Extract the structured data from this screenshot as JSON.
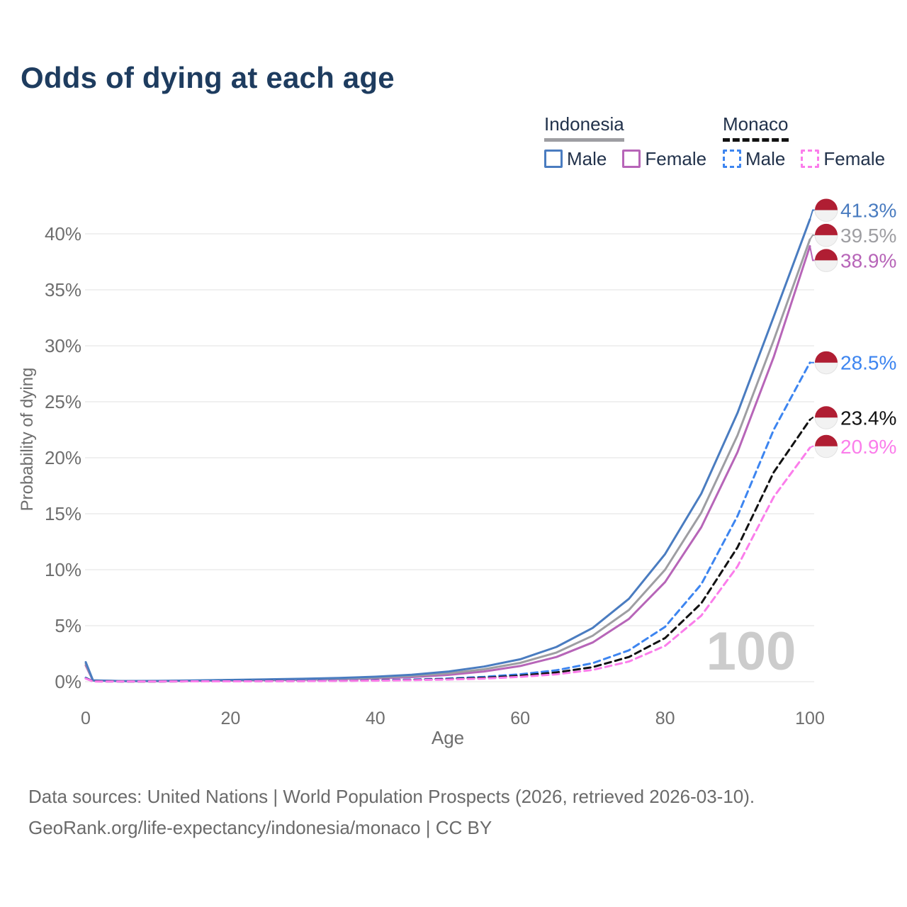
{
  "title": "Odds of dying at each age",
  "legend": {
    "groups": [
      {
        "name": "Indonesia",
        "line_style": "solid",
        "line_color": "#9e9ea2",
        "items": [
          {
            "label": "Male",
            "color": "#4a7cc0",
            "style": "solid"
          },
          {
            "label": "Female",
            "color": "#b765b8",
            "style": "solid"
          }
        ]
      },
      {
        "name": "Monaco",
        "line_style": "dashed",
        "line_color": "#121212",
        "items": [
          {
            "label": "Male",
            "color": "#3d85f0",
            "style": "dashed"
          },
          {
            "label": "Female",
            "color": "#fb7deb",
            "style": "dashed"
          }
        ]
      }
    ]
  },
  "chart_data": {
    "type": "line",
    "title": "Odds of dying at each age",
    "xlabel": "Age",
    "ylabel": "Probability of dying",
    "xlim": [
      0,
      100
    ],
    "ylim": [
      0,
      43
    ],
    "grid": "horizontal-only",
    "legend_position": "top-right",
    "watermark": "100",
    "x_ticks": [
      {
        "value": 0,
        "label": "0"
      },
      {
        "value": 20,
        "label": "20"
      },
      {
        "value": 40,
        "label": "40"
      },
      {
        "value": 60,
        "label": "60"
      },
      {
        "value": 80,
        "label": "80"
      },
      {
        "value": 100,
        "label": "100"
      }
    ],
    "y_ticks": [
      {
        "value": 0,
        "label": "0%"
      },
      {
        "value": 5,
        "label": "5%"
      },
      {
        "value": 10,
        "label": "10%"
      },
      {
        "value": 15,
        "label": "15%"
      },
      {
        "value": 20,
        "label": "20%"
      },
      {
        "value": 25,
        "label": "25%"
      },
      {
        "value": 30,
        "label": "30%"
      },
      {
        "value": 35,
        "label": "35%"
      },
      {
        "value": 40,
        "label": "40%"
      }
    ],
    "colors": {
      "grid": "#ececec",
      "axis_text": "#6e6e6e",
      "watermark": "#cccccc",
      "flag_red": "#b01e33",
      "flag_white": "#f2f2f2",
      "flag_rim": "#e2e2e2"
    },
    "series": [
      {
        "name": "Indonesia Male",
        "country": "Indonesia",
        "sex": "Male",
        "color": "#4a7cc0",
        "dash": "solid",
        "end_label": "41.3%",
        "flag": "indonesia",
        "label_offset": -13,
        "points": [
          [
            0,
            1.75
          ],
          [
            1,
            0.12
          ],
          [
            5,
            0.06
          ],
          [
            10,
            0.07
          ],
          [
            15,
            0.11
          ],
          [
            20,
            0.16
          ],
          [
            25,
            0.21
          ],
          [
            30,
            0.26
          ],
          [
            35,
            0.33
          ],
          [
            40,
            0.44
          ],
          [
            45,
            0.62
          ],
          [
            50,
            0.9
          ],
          [
            55,
            1.35
          ],
          [
            60,
            2.0
          ],
          [
            65,
            3.1
          ],
          [
            70,
            4.8
          ],
          [
            75,
            7.4
          ],
          [
            80,
            11.4
          ],
          [
            85,
            16.8
          ],
          [
            90,
            24.0
          ],
          [
            95,
            32.6
          ],
          [
            100,
            41.3
          ]
        ]
      },
      {
        "name": "Indonesia",
        "country": "Indonesia",
        "sex": "Both",
        "color": "#9e9ea2",
        "dash": "solid",
        "end_label": "39.5%",
        "flag": "indonesia",
        "label_offset": -6,
        "points": [
          [
            0,
            1.6
          ],
          [
            1,
            0.11
          ],
          [
            5,
            0.05
          ],
          [
            10,
            0.06
          ],
          [
            15,
            0.09
          ],
          [
            20,
            0.13
          ],
          [
            25,
            0.17
          ],
          [
            30,
            0.21
          ],
          [
            35,
            0.27
          ],
          [
            40,
            0.36
          ],
          [
            45,
            0.51
          ],
          [
            50,
            0.74
          ],
          [
            55,
            1.11
          ],
          [
            60,
            1.68
          ],
          [
            65,
            2.6
          ],
          [
            70,
            4.1
          ],
          [
            75,
            6.4
          ],
          [
            80,
            10.0
          ],
          [
            85,
            15.1
          ],
          [
            90,
            22.0
          ],
          [
            95,
            30.5
          ],
          [
            100,
            39.5
          ]
        ]
      },
      {
        "name": "Indonesia Female",
        "country": "Indonesia",
        "sex": "Female",
        "color": "#b765b8",
        "dash": "solid",
        "end_label": "38.9%",
        "flag": "indonesia",
        "label_offset": 20,
        "points": [
          [
            0,
            1.45
          ],
          [
            1,
            0.1
          ],
          [
            5,
            0.05
          ],
          [
            10,
            0.05
          ],
          [
            15,
            0.07
          ],
          [
            20,
            0.1
          ],
          [
            25,
            0.13
          ],
          [
            30,
            0.17
          ],
          [
            35,
            0.22
          ],
          [
            40,
            0.29
          ],
          [
            45,
            0.41
          ],
          [
            50,
            0.6
          ],
          [
            55,
            0.91
          ],
          [
            60,
            1.4
          ],
          [
            65,
            2.2
          ],
          [
            70,
            3.5
          ],
          [
            75,
            5.6
          ],
          [
            80,
            8.9
          ],
          [
            85,
            13.8
          ],
          [
            90,
            20.5
          ],
          [
            95,
            29.0
          ],
          [
            100,
            38.9
          ]
        ]
      },
      {
        "name": "Monaco Male",
        "country": "Monaco",
        "sex": "Male",
        "color": "#3d85f0",
        "dash": "dashed",
        "end_label": "28.5%",
        "flag": "monaco",
        "label_offset": 0,
        "points": [
          [
            0,
            0.35
          ],
          [
            1,
            0.03
          ],
          [
            5,
            0.02
          ],
          [
            10,
            0.02
          ],
          [
            15,
            0.04
          ],
          [
            20,
            0.05
          ],
          [
            25,
            0.06
          ],
          [
            30,
            0.08
          ],
          [
            35,
            0.1
          ],
          [
            40,
            0.13
          ],
          [
            45,
            0.19
          ],
          [
            50,
            0.28
          ],
          [
            55,
            0.43
          ],
          [
            60,
            0.66
          ],
          [
            65,
            1.02
          ],
          [
            70,
            1.65
          ],
          [
            75,
            2.8
          ],
          [
            80,
            4.9
          ],
          [
            85,
            8.7
          ],
          [
            90,
            14.8
          ],
          [
            95,
            22.5
          ],
          [
            100,
            28.5
          ]
        ]
      },
      {
        "name": "Monaco",
        "country": "Monaco",
        "sex": "Both",
        "color": "#121212",
        "dash": "dashed",
        "end_label": "23.4%",
        "flag": "monaco",
        "label_offset": -3,
        "points": [
          [
            0,
            0.3
          ],
          [
            1,
            0.03
          ],
          [
            5,
            0.02
          ],
          [
            10,
            0.02
          ],
          [
            15,
            0.03
          ],
          [
            20,
            0.04
          ],
          [
            25,
            0.05
          ],
          [
            30,
            0.06
          ],
          [
            35,
            0.08
          ],
          [
            40,
            0.11
          ],
          [
            45,
            0.15
          ],
          [
            50,
            0.23
          ],
          [
            55,
            0.35
          ],
          [
            60,
            0.53
          ],
          [
            65,
            0.82
          ],
          [
            70,
            1.3
          ],
          [
            75,
            2.2
          ],
          [
            80,
            3.9
          ],
          [
            85,
            7.0
          ],
          [
            90,
            12.0
          ],
          [
            95,
            18.7
          ],
          [
            100,
            23.4
          ]
        ]
      },
      {
        "name": "Monaco Female",
        "country": "Monaco",
        "sex": "Female",
        "color": "#fb7deb",
        "dash": "dashed",
        "end_label": "20.9%",
        "flag": "monaco",
        "label_offset": -2,
        "points": [
          [
            0,
            0.28
          ],
          [
            1,
            0.02
          ],
          [
            5,
            0.02
          ],
          [
            10,
            0.02
          ],
          [
            15,
            0.03
          ],
          [
            20,
            0.03
          ],
          [
            25,
            0.04
          ],
          [
            30,
            0.05
          ],
          [
            35,
            0.07
          ],
          [
            40,
            0.09
          ],
          [
            45,
            0.13
          ],
          [
            50,
            0.19
          ],
          [
            55,
            0.28
          ],
          [
            60,
            0.43
          ],
          [
            65,
            0.66
          ],
          [
            70,
            1.05
          ],
          [
            75,
            1.8
          ],
          [
            80,
            3.2
          ],
          [
            85,
            5.9
          ],
          [
            90,
            10.3
          ],
          [
            95,
            16.5
          ],
          [
            100,
            20.9
          ]
        ]
      }
    ]
  },
  "footer": {
    "line1": "Data sources: United Nations | World Population Prospects (2026, retrieved 2026-03-10).",
    "line2": "GeoRank.org/life-expectancy/indonesia/monaco | CC BY"
  }
}
